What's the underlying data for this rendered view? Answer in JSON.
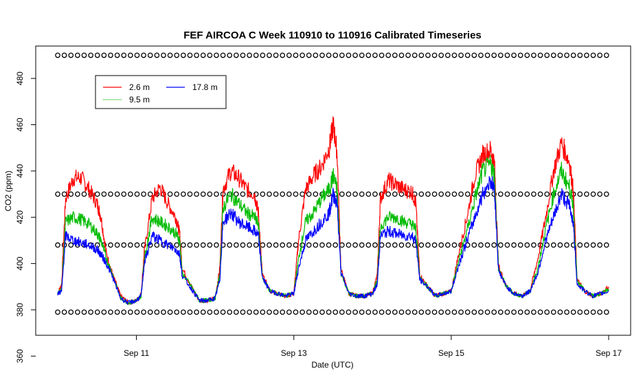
{
  "chart_data": {
    "type": "line",
    "title": "FEF AIRCOA C  Week 110910 to 110916  Calibrated Timeseries",
    "xlabel": "Date (UTC)",
    "ylabel": "CO2 (ppm)",
    "xlim_days": [
      0,
      7
    ],
    "ylim": [
      369,
      494
    ],
    "x_ticks": [
      {
        "label": "Sep 11",
        "day": 1
      },
      {
        "label": "Sep 13",
        "day": 3
      },
      {
        "label": "Sep 15",
        "day": 5
      },
      {
        "label": "Sep 17",
        "day": 7
      }
    ],
    "y_ticks": [
      360,
      380,
      400,
      420,
      440,
      460,
      480
    ],
    "legend": {
      "placement": "top-left",
      "entries": [
        {
          "label": "2.6 m",
          "color": "#ff0000"
        },
        {
          "label": "9.5 m",
          "color": "#00bb00"
        },
        {
          "label": "17.8 m",
          "color": "#0000ff"
        }
      ]
    },
    "reference_markers": {
      "symbol": "open-circle",
      "color": "#000000",
      "levels_ppm": [
        490,
        430,
        408,
        379
      ],
      "interval_days": 0.084
    },
    "series": [
      {
        "name": "2.6 m",
        "color": "#ff0000",
        "points": [
          [
            0.0,
            387
          ],
          [
            0.05,
            391
          ],
          [
            0.1,
            428
          ],
          [
            0.2,
            437
          ],
          [
            0.3,
            437
          ],
          [
            0.4,
            432
          ],
          [
            0.5,
            426
          ],
          [
            0.55,
            420
          ],
          [
            0.62,
            404
          ],
          [
            0.7,
            395
          ],
          [
            0.8,
            386
          ],
          [
            0.9,
            383
          ],
          [
            1.0,
            384
          ],
          [
            1.06,
            387
          ],
          [
            1.1,
            405
          ],
          [
            1.2,
            428
          ],
          [
            1.3,
            433
          ],
          [
            1.4,
            426
          ],
          [
            1.5,
            420
          ],
          [
            1.55,
            413
          ],
          [
            1.58,
            398
          ],
          [
            1.7,
            390
          ],
          [
            1.8,
            384
          ],
          [
            1.9,
            384
          ],
          [
            2.0,
            385
          ],
          [
            2.06,
            398
          ],
          [
            2.1,
            432
          ],
          [
            2.2,
            440
          ],
          [
            2.3,
            437
          ],
          [
            2.4,
            432
          ],
          [
            2.5,
            430
          ],
          [
            2.55,
            422
          ],
          [
            2.6,
            395
          ],
          [
            2.7,
            388
          ],
          [
            2.8,
            387
          ],
          [
            2.9,
            386
          ],
          [
            3.0,
            387
          ],
          [
            3.06,
            410
          ],
          [
            3.15,
            432
          ],
          [
            3.25,
            438
          ],
          [
            3.35,
            442
          ],
          [
            3.45,
            450
          ],
          [
            3.5,
            460
          ],
          [
            3.55,
            448
          ],
          [
            3.6,
            397
          ],
          [
            3.7,
            387
          ],
          [
            3.8,
            386
          ],
          [
            3.9,
            386
          ],
          [
            4.0,
            387
          ],
          [
            4.06,
            395
          ],
          [
            4.1,
            428
          ],
          [
            4.2,
            436
          ],
          [
            4.3,
            434
          ],
          [
            4.4,
            432
          ],
          [
            4.5,
            431
          ],
          [
            4.55,
            426
          ],
          [
            4.6,
            395
          ],
          [
            4.7,
            390
          ],
          [
            4.8,
            386
          ],
          [
            4.9,
            387
          ],
          [
            5.0,
            388
          ],
          [
            5.1,
            405
          ],
          [
            5.2,
            420
          ],
          [
            5.3,
            438
          ],
          [
            5.4,
            447
          ],
          [
            5.5,
            449
          ],
          [
            5.55,
            443
          ],
          [
            5.6,
            399
          ],
          [
            5.7,
            390
          ],
          [
            5.8,
            387
          ],
          [
            5.9,
            386
          ],
          [
            6.0,
            388
          ],
          [
            6.1,
            402
          ],
          [
            6.2,
            420
          ],
          [
            6.3,
            440
          ],
          [
            6.4,
            452
          ],
          [
            6.5,
            444
          ],
          [
            6.55,
            432
          ],
          [
            6.6,
            393
          ],
          [
            6.7,
            388
          ],
          [
            6.8,
            386
          ],
          [
            6.9,
            387
          ],
          [
            7.0,
            390
          ]
        ]
      },
      {
        "name": "9.5 m",
        "color": "#00bb00",
        "points": [
          [
            0.0,
            387
          ],
          [
            0.05,
            389
          ],
          [
            0.1,
            418
          ],
          [
            0.2,
            420
          ],
          [
            0.3,
            419
          ],
          [
            0.4,
            417
          ],
          [
            0.5,
            413
          ],
          [
            0.55,
            410
          ],
          [
            0.62,
            402
          ],
          [
            0.7,
            395
          ],
          [
            0.8,
            385
          ],
          [
            0.9,
            383
          ],
          [
            1.0,
            384
          ],
          [
            1.06,
            386
          ],
          [
            1.1,
            402
          ],
          [
            1.2,
            420
          ],
          [
            1.3,
            418
          ],
          [
            1.4,
            416
          ],
          [
            1.5,
            413
          ],
          [
            1.55,
            410
          ],
          [
            1.58,
            396
          ],
          [
            1.7,
            390
          ],
          [
            1.8,
            384
          ],
          [
            1.9,
            384
          ],
          [
            2.0,
            385
          ],
          [
            2.06,
            395
          ],
          [
            2.1,
            424
          ],
          [
            2.2,
            430
          ],
          [
            2.3,
            426
          ],
          [
            2.4,
            422
          ],
          [
            2.5,
            420
          ],
          [
            2.55,
            417
          ],
          [
            2.6,
            394
          ],
          [
            2.7,
            388
          ],
          [
            2.8,
            387
          ],
          [
            2.9,
            386
          ],
          [
            3.0,
            387
          ],
          [
            3.06,
            402
          ],
          [
            3.15,
            418
          ],
          [
            3.25,
            422
          ],
          [
            3.35,
            428
          ],
          [
            3.45,
            432
          ],
          [
            3.5,
            438
          ],
          [
            3.55,
            432
          ],
          [
            3.6,
            396
          ],
          [
            3.7,
            387
          ],
          [
            3.8,
            386
          ],
          [
            3.9,
            386
          ],
          [
            4.0,
            387
          ],
          [
            4.06,
            393
          ],
          [
            4.1,
            416
          ],
          [
            4.2,
            420
          ],
          [
            4.3,
            420
          ],
          [
            4.4,
            418
          ],
          [
            4.5,
            417
          ],
          [
            4.55,
            415
          ],
          [
            4.6,
            394
          ],
          [
            4.7,
            390
          ],
          [
            4.8,
            386
          ],
          [
            4.9,
            387
          ],
          [
            5.0,
            388
          ],
          [
            5.1,
            402
          ],
          [
            5.2,
            414
          ],
          [
            5.3,
            428
          ],
          [
            5.4,
            440
          ],
          [
            5.5,
            443
          ],
          [
            5.55,
            438
          ],
          [
            5.6,
            398
          ],
          [
            5.7,
            390
          ],
          [
            5.8,
            387
          ],
          [
            5.9,
            386
          ],
          [
            6.0,
            388
          ],
          [
            6.1,
            398
          ],
          [
            6.2,
            415
          ],
          [
            6.3,
            430
          ],
          [
            6.4,
            440
          ],
          [
            6.5,
            433
          ],
          [
            6.55,
            425
          ],
          [
            6.6,
            392
          ],
          [
            6.7,
            388
          ],
          [
            6.8,
            386
          ],
          [
            6.9,
            387
          ],
          [
            7.0,
            389
          ]
        ]
      },
      {
        "name": "17.8 m",
        "color": "#0000ff",
        "points": [
          [
            0.0,
            387
          ],
          [
            0.05,
            388
          ],
          [
            0.1,
            412
          ],
          [
            0.2,
            410
          ],
          [
            0.3,
            409
          ],
          [
            0.4,
            408
          ],
          [
            0.5,
            406
          ],
          [
            0.55,
            404
          ],
          [
            0.62,
            400
          ],
          [
            0.7,
            394
          ],
          [
            0.8,
            385
          ],
          [
            0.9,
            383
          ],
          [
            1.0,
            384
          ],
          [
            1.06,
            386
          ],
          [
            1.1,
            400
          ],
          [
            1.2,
            412
          ],
          [
            1.3,
            410
          ],
          [
            1.4,
            408
          ],
          [
            1.5,
            406
          ],
          [
            1.55,
            404
          ],
          [
            1.58,
            395
          ],
          [
            1.7,
            389
          ],
          [
            1.8,
            384
          ],
          [
            1.9,
            384
          ],
          [
            2.0,
            385
          ],
          [
            2.06,
            393
          ],
          [
            2.1,
            418
          ],
          [
            2.2,
            422
          ],
          [
            2.3,
            418
          ],
          [
            2.4,
            416
          ],
          [
            2.5,
            414
          ],
          [
            2.55,
            412
          ],
          [
            2.6,
            394
          ],
          [
            2.7,
            388
          ],
          [
            2.8,
            387
          ],
          [
            2.9,
            386
          ],
          [
            3.0,
            387
          ],
          [
            3.06,
            398
          ],
          [
            3.15,
            410
          ],
          [
            3.25,
            414
          ],
          [
            3.35,
            418
          ],
          [
            3.45,
            422
          ],
          [
            3.5,
            430
          ],
          [
            3.55,
            426
          ],
          [
            3.6,
            396
          ],
          [
            3.7,
            387
          ],
          [
            3.8,
            386
          ],
          [
            3.9,
            386
          ],
          [
            4.0,
            387
          ],
          [
            4.06,
            391
          ],
          [
            4.1,
            412
          ],
          [
            4.2,
            414
          ],
          [
            4.3,
            413
          ],
          [
            4.4,
            412
          ],
          [
            4.5,
            412
          ],
          [
            4.55,
            410
          ],
          [
            4.6,
            393
          ],
          [
            4.7,
            390
          ],
          [
            4.8,
            386
          ],
          [
            4.9,
            387
          ],
          [
            5.0,
            388
          ],
          [
            5.1,
            400
          ],
          [
            5.2,
            410
          ],
          [
            5.3,
            420
          ],
          [
            5.4,
            430
          ],
          [
            5.5,
            436
          ],
          [
            5.55,
            432
          ],
          [
            5.6,
            397
          ],
          [
            5.7,
            390
          ],
          [
            5.8,
            387
          ],
          [
            5.9,
            386
          ],
          [
            6.0,
            388
          ],
          [
            6.1,
            396
          ],
          [
            6.2,
            410
          ],
          [
            6.3,
            420
          ],
          [
            6.4,
            430
          ],
          [
            6.5,
            425
          ],
          [
            6.55,
            418
          ],
          [
            6.6,
            391
          ],
          [
            6.7,
            388
          ],
          [
            6.8,
            386
          ],
          [
            6.9,
            387
          ],
          [
            7.0,
            388
          ]
        ]
      }
    ]
  }
}
